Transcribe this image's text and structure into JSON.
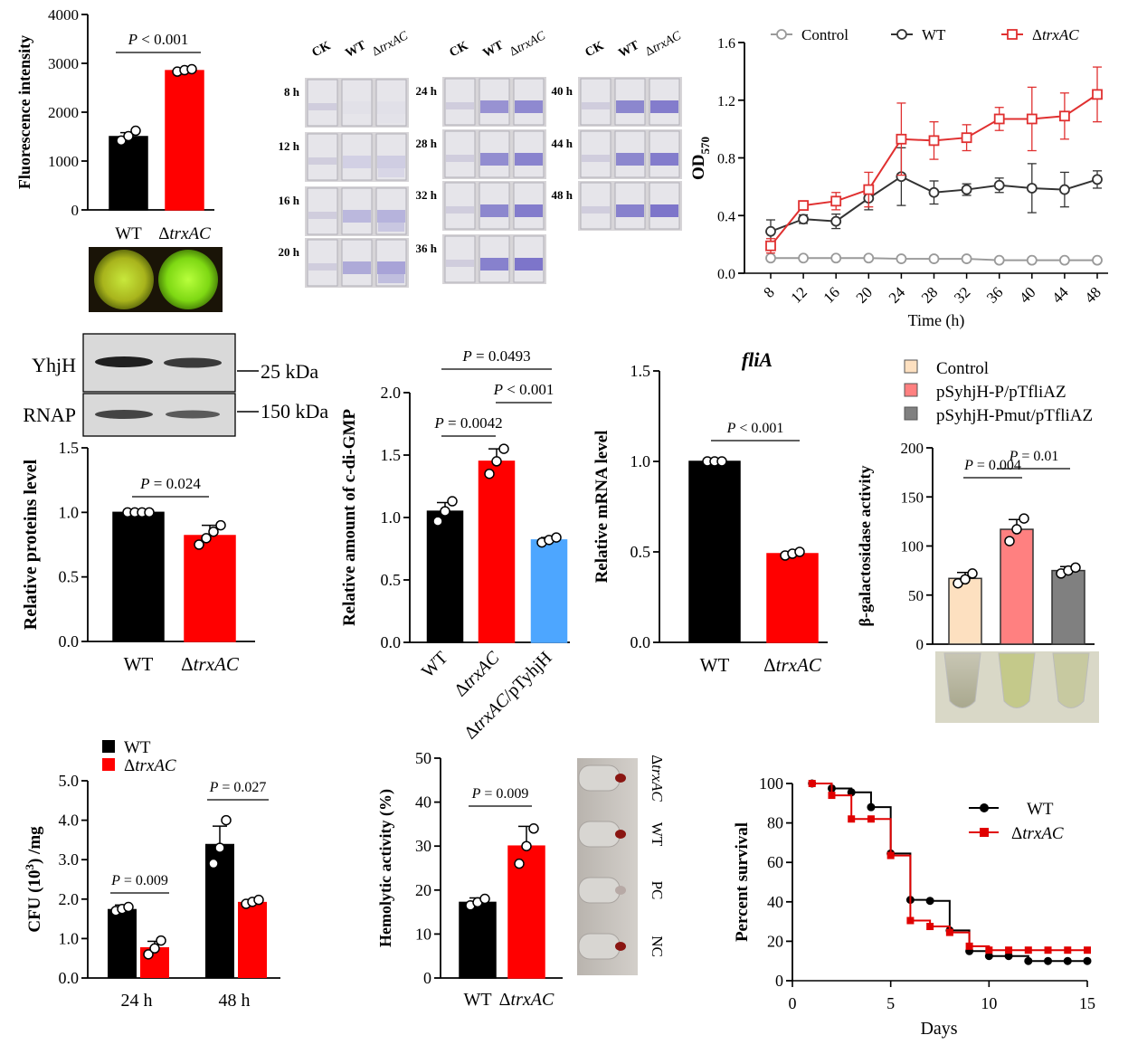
{
  "chart_data": [
    {
      "id": "fluorescence",
      "type": "bar",
      "categories": [
        "WT",
        "ΔtrxAC"
      ],
      "values": [
        1500,
        2850
      ],
      "errors": [
        80,
        30
      ],
      "points": [
        [
          1420,
          1510,
          1620
        ],
        [
          2830,
          2860,
          2880
        ]
      ],
      "colors": [
        "#000000",
        "#ff0000"
      ],
      "ylabel": "Fluorescence intensity",
      "ylim": [
        0,
        4000
      ],
      "yticks": [
        0,
        1000,
        2000,
        3000,
        4000
      ],
      "annotations": [
        {
          "text": "P < 0.001"
        }
      ]
    },
    {
      "id": "od570",
      "type": "line",
      "x": [
        8,
        12,
        16,
        20,
        24,
        28,
        32,
        36,
        40,
        44,
        48
      ],
      "series": [
        {
          "name": "Control",
          "color": "#9a9a9a",
          "marker": "circle",
          "values": [
            0.105,
            0.105,
            0.105,
            0.105,
            0.1,
            0.1,
            0.1,
            0.09,
            0.09,
            0.09,
            0.09
          ],
          "errors": [
            0.01,
            0.01,
            0.01,
            0.01,
            0.01,
            0.01,
            0.01,
            0.015,
            0.01,
            0.01,
            0.01
          ]
        },
        {
          "name": "WT",
          "color": "#333333",
          "marker": "circle",
          "values": [
            0.29,
            0.375,
            0.36,
            0.52,
            0.67,
            0.56,
            0.58,
            0.61,
            0.59,
            0.58,
            0.65
          ],
          "errors": [
            0.08,
            0.03,
            0.05,
            0.08,
            0.2,
            0.08,
            0.04,
            0.05,
            0.17,
            0.12,
            0.06
          ]
        },
        {
          "name": "ΔtrxAC",
          "color": "#e03030",
          "marker": "square",
          "values": [
            0.19,
            0.47,
            0.5,
            0.58,
            0.93,
            0.92,
            0.94,
            1.07,
            1.07,
            1.09,
            1.24
          ],
          "errors": [
            0.05,
            0.03,
            0.06,
            0.12,
            0.25,
            0.13,
            0.09,
            0.08,
            0.22,
            0.16,
            0.19
          ]
        }
      ],
      "xlabel": "Time (h)",
      "ylabel": "OD",
      "ylabel_sub": "570",
      "ylim": [
        0,
        1.6
      ],
      "yticks": [
        0.0,
        0.4,
        0.8,
        1.2,
        1.6
      ],
      "xtick_labels": [
        "8",
        "12",
        "16",
        "20",
        "24",
        "28",
        "32",
        "36",
        "40",
        "44",
        "48"
      ]
    },
    {
      "id": "yhjh_protein",
      "type": "bar",
      "categories": [
        "WT",
        "ΔtrxAC"
      ],
      "values": [
        1.0,
        0.82
      ],
      "errors": [
        0.0,
        0.08
      ],
      "points": [
        [
          1.0,
          1.0,
          1.0,
          1.0
        ],
        [
          0.75,
          0.8,
          0.85,
          0.9
        ]
      ],
      "colors": [
        "#000000",
        "#ff0000"
      ],
      "ylabel": "Relative proteins level",
      "ylim": [
        0,
        1.5
      ],
      "yticks": [
        0.0,
        0.5,
        1.0,
        1.5
      ],
      "annotations": [
        {
          "text": "P = 0.024"
        }
      ],
      "blot_labels": [
        "YhjH",
        "RNAP"
      ],
      "blot_sizes": [
        "25 kDa",
        "150 kDa"
      ]
    },
    {
      "id": "cdigmp",
      "type": "bar",
      "categories": [
        "WT",
        "ΔtrxAC",
        "ΔtrxAC/pTyhjH"
      ],
      "values": [
        1.05,
        1.45,
        0.82
      ],
      "errors": [
        0.07,
        0.1,
        0.02
      ],
      "points": [
        [
          0.97,
          1.05,
          1.13
        ],
        [
          1.35,
          1.45,
          1.55
        ],
        [
          0.8,
          0.82,
          0.84
        ]
      ],
      "colors": [
        "#000000",
        "#ff0000",
        "#4da6ff"
      ],
      "ylabel": "Relative amount of c-di-GMP",
      "ylim": [
        0,
        2.0
      ],
      "yticks": [
        0.0,
        0.5,
        1.0,
        1.5,
        2.0
      ],
      "annotations": [
        {
          "text": "P = 0.0493"
        },
        {
          "text": "P < 0.001"
        },
        {
          "text": "P = 0.0042"
        }
      ]
    },
    {
      "id": "flia",
      "type": "bar",
      "title": "fliA",
      "categories": [
        "WT",
        "ΔtrxAC"
      ],
      "values": [
        1.0,
        0.49
      ],
      "errors": [
        0.0,
        0.01
      ],
      "points": [
        [
          1.0,
          1.0,
          1.0
        ],
        [
          0.48,
          0.49,
          0.5
        ]
      ],
      "colors": [
        "#000000",
        "#ff0000"
      ],
      "ylabel": "Relative mRNA level",
      "ylim": [
        0,
        1.5
      ],
      "yticks": [
        0.0,
        0.5,
        1.0,
        1.5
      ],
      "annotations": [
        {
          "text": "P < 0.001"
        }
      ]
    },
    {
      "id": "galactosidase",
      "type": "bar",
      "categories": [
        "Control",
        "pSyhjH-P/pTfliAZ",
        "pSyhjH-Pmut/pTfliAZ"
      ],
      "values": [
        67,
        117,
        75
      ],
      "errors": [
        6,
        10,
        4
      ],
      "points": [
        [
          62,
          66,
          72
        ],
        [
          105,
          117,
          128
        ],
        [
          72,
          75,
          78
        ]
      ],
      "colors": [
        "#fde0c0",
        "#ff8080",
        "#808080"
      ],
      "ylabel": "β-galactosidase activity",
      "ylim": [
        0,
        200
      ],
      "yticks": [
        0,
        50,
        100,
        150,
        200
      ],
      "legend": [
        "Control",
        "pSyhjH-P/pTfliAZ",
        "pSyhjH-Pmut/pTfliAZ"
      ],
      "annotations": [
        {
          "text": "P = 0.004"
        },
        {
          "text": "P = 0.01"
        }
      ]
    },
    {
      "id": "cfu",
      "type": "bar",
      "categories": [
        "24 h",
        "48 h"
      ],
      "series": [
        {
          "name": "WT",
          "color": "#000000",
          "values": [
            1.75,
            3.4
          ],
          "errors": [
            0.1,
            0.45
          ],
          "points": [
            [
              1.7,
              1.75,
              1.8
            ],
            [
              2.9,
              3.3,
              4.0
            ]
          ]
        },
        {
          "name": "ΔtrxAC",
          "color": "#ff0000",
          "values": [
            0.78,
            1.93
          ],
          "errors": [
            0.15,
            0.06
          ],
          "points": [
            [
              0.6,
              0.75,
              0.95
            ],
            [
              1.88,
              1.93,
              1.98
            ]
          ]
        }
      ],
      "ylabel": "CFU (10",
      "ylabel_sup": "3",
      "ylabel_tail": ") /mg",
      "ylim": [
        0,
        5.0
      ],
      "yticks": [
        0.0,
        1.0,
        2.0,
        3.0,
        4.0,
        5.0
      ],
      "annotations": [
        {
          "text": "P = 0.009"
        },
        {
          "text": "P = 0.027"
        }
      ]
    },
    {
      "id": "hemolytic",
      "type": "bar",
      "categories": [
        "WT",
        "ΔtrxAC"
      ],
      "values": [
        17.2,
        30
      ],
      "errors": [
        1.0,
        4.5
      ],
      "points": [
        [
          16.5,
          17.2,
          18
        ],
        [
          26,
          30,
          34
        ]
      ],
      "colors": [
        "#000000",
        "#ff0000"
      ],
      "ylabel": "Hemolytic activity (%)",
      "ylim": [
        0,
        50
      ],
      "yticks": [
        0,
        10,
        20,
        30,
        40,
        50
      ],
      "annotations": [
        {
          "text": "P = 0.009"
        }
      ],
      "tube_labels": [
        "ΔtrxAC",
        "WT",
        "PC",
        "NC"
      ]
    },
    {
      "id": "survival",
      "type": "line",
      "series": [
        {
          "name": "WT",
          "color": "#000000",
          "marker": "circle",
          "x": [
            1,
            2,
            3,
            4,
            5,
            6,
            7,
            8,
            9,
            10,
            11,
            12,
            13,
            14,
            15
          ],
          "values": [
            100,
            97.5,
            95.5,
            88,
            64.5,
            41,
            40.5,
            25.5,
            15,
            12.5,
            12.5,
            10,
            10,
            10,
            10
          ]
        },
        {
          "name": "ΔtrxAC",
          "color": "#e00000",
          "marker": "square",
          "x": [
            1,
            2,
            3,
            4,
            5,
            6,
            7,
            8,
            9,
            10,
            11,
            12,
            13,
            14,
            15
          ],
          "values": [
            100,
            94,
            82,
            82,
            63.5,
            30.5,
            27.5,
            24.5,
            17.5,
            15.5,
            15.5,
            15.5,
            15.5,
            15.5,
            15.5
          ]
        }
      ],
      "xlabel": "Days",
      "ylabel": "Percent survival",
      "xlim": [
        0,
        15
      ],
      "ylim": [
        0,
        100
      ],
      "xticks": [
        0,
        5,
        10,
        15
      ],
      "yticks": [
        0,
        20,
        40,
        60,
        80,
        100
      ]
    }
  ],
  "biofilm_plates": {
    "headers": [
      "CK",
      "WT",
      "ΔtrxAC"
    ],
    "groups": [
      {
        "times": [
          "8 h",
          "12 h",
          "16 h",
          "20 h"
        ],
        "intensity": [
          0.03,
          0.18,
          0.38,
          0.5
        ]
      },
      {
        "times": [
          "24 h",
          "28 h",
          "32 h",
          "36 h"
        ],
        "intensity": [
          0.7,
          0.75,
          0.8,
          0.85
        ]
      },
      {
        "times": [
          "40 h",
          "44 h",
          "48 h"
        ],
        "intensity": [
          0.8,
          0.8,
          0.85
        ]
      }
    ]
  },
  "colors": {
    "black_bar": "#000000",
    "red_bar": "#ff0000",
    "blue_bar": "#4da6ff",
    "plate_bg": "#d7d5d8",
    "biofilm": "#6a62c4"
  }
}
